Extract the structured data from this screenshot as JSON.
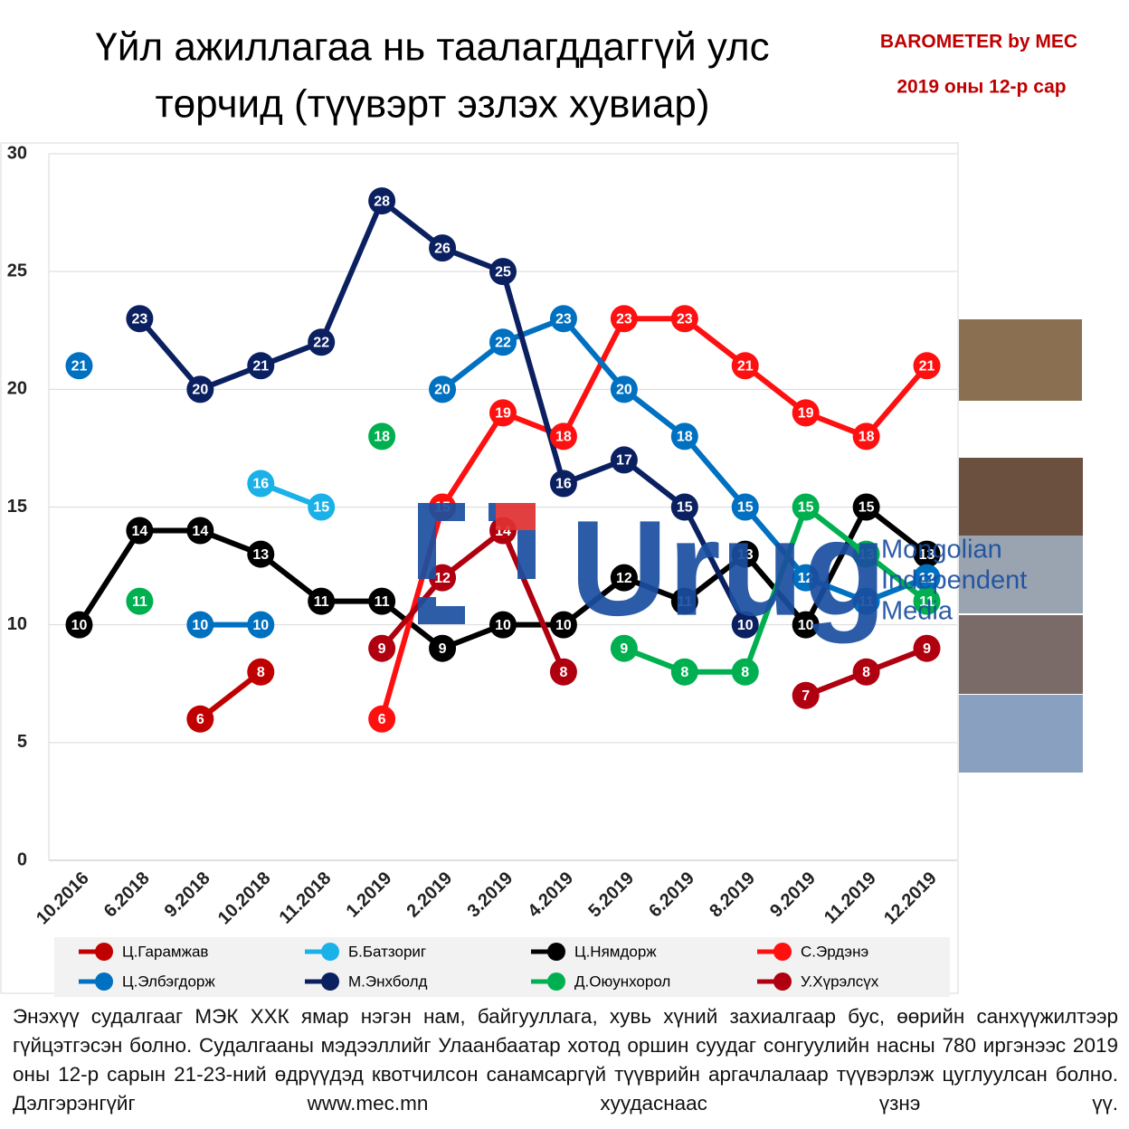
{
  "chart_data": {
    "type": "line",
    "title": [
      "Үйл ажиллагаа нь таалагддаггүй улс",
      "төрчид (түүвэрт эзлэх хувиар)"
    ],
    "brand": "BAROMETER by MEC",
    "subtitle": "2019 оны 12-р сар",
    "watermark": {
      "logo": "Urug",
      "lines": [
        "Mongolian",
        "Independent",
        "Media"
      ]
    },
    "categories": [
      "10.2016",
      "6.2018",
      "9.2018",
      "10.2018",
      "11.2018",
      "1.2019",
      "2.2019",
      "3.2019",
      "4.2019",
      "5.2019",
      "6.2019",
      "8.2019",
      "9.2019",
      "11.2019",
      "12.2019"
    ],
    "series": [
      {
        "name": "Ц.Гарамжав",
        "color": "#c00000",
        "values": [
          null,
          null,
          6,
          8,
          null,
          null,
          null,
          null,
          null,
          null,
          null,
          null,
          null,
          null,
          null
        ]
      },
      {
        "name": "Б.Батзориг",
        "color": "#1ab0e8",
        "values": [
          null,
          null,
          null,
          16,
          15,
          null,
          null,
          null,
          null,
          null,
          null,
          null,
          null,
          null,
          null
        ]
      },
      {
        "name": "Ц.Нямдорж",
        "color": "#000000",
        "values": [
          10,
          14,
          14,
          13,
          11,
          11,
          9,
          10,
          10,
          12,
          11,
          13,
          10,
          15,
          13
        ]
      },
      {
        "name": "С.Эрдэнэ",
        "color": "#ff1010",
        "values": [
          null,
          null,
          null,
          null,
          null,
          6,
          15,
          19,
          18,
          23,
          23,
          21,
          19,
          18,
          21
        ]
      },
      {
        "name": "Ц.Элбэгдорж",
        "color": "#0070c0",
        "values": [
          21,
          null,
          10,
          10,
          null,
          null,
          20,
          22,
          23,
          20,
          18,
          15,
          12,
          11,
          12
        ]
      },
      {
        "name": "М.Энхболд",
        "color": "#0b2060",
        "values": [
          null,
          23,
          20,
          21,
          22,
          28,
          26,
          25,
          16,
          17,
          15,
          10,
          null,
          null,
          null
        ]
      },
      {
        "name": "Д.Оюунхорол",
        "color": "#00b050",
        "values": [
          null,
          11,
          null,
          null,
          null,
          18,
          null,
          null,
          null,
          9,
          8,
          8,
          15,
          13,
          11
        ]
      },
      {
        "name": "У.Хүрэлсүх",
        "color": "#b00010",
        "values": [
          null,
          null,
          null,
          null,
          null,
          9,
          12,
          14,
          8,
          null,
          null,
          null,
          7,
          8,
          9
        ]
      }
    ],
    "ylim": [
      0,
      30
    ],
    "yticks": [
      0,
      5,
      10,
      15,
      20,
      25,
      30
    ],
    "grid": true,
    "legend": "bottom",
    "note": "Энэхүү судалгааг МЭК ХХК ямар нэгэн нам, байгууллага, хувь хүний захиалгаар бус, өөрийн санхүүжилтээр гүйцэтгэсэн болно. Судалгааны мэдээллийг Улаанбаатар хотод оршин суудаг сонгуулийн насны 780 иргэнээс 2019 оны 12-р сарын 21-23-ний өдрүүдэд квотчилсон санамсаргүй түүврийн аргачлалаар түүвэрлэж цуглуулсан болно. Дэлгэрэнгүйг www.mec.mn хуудаснаас үзнэ үү."
  }
}
